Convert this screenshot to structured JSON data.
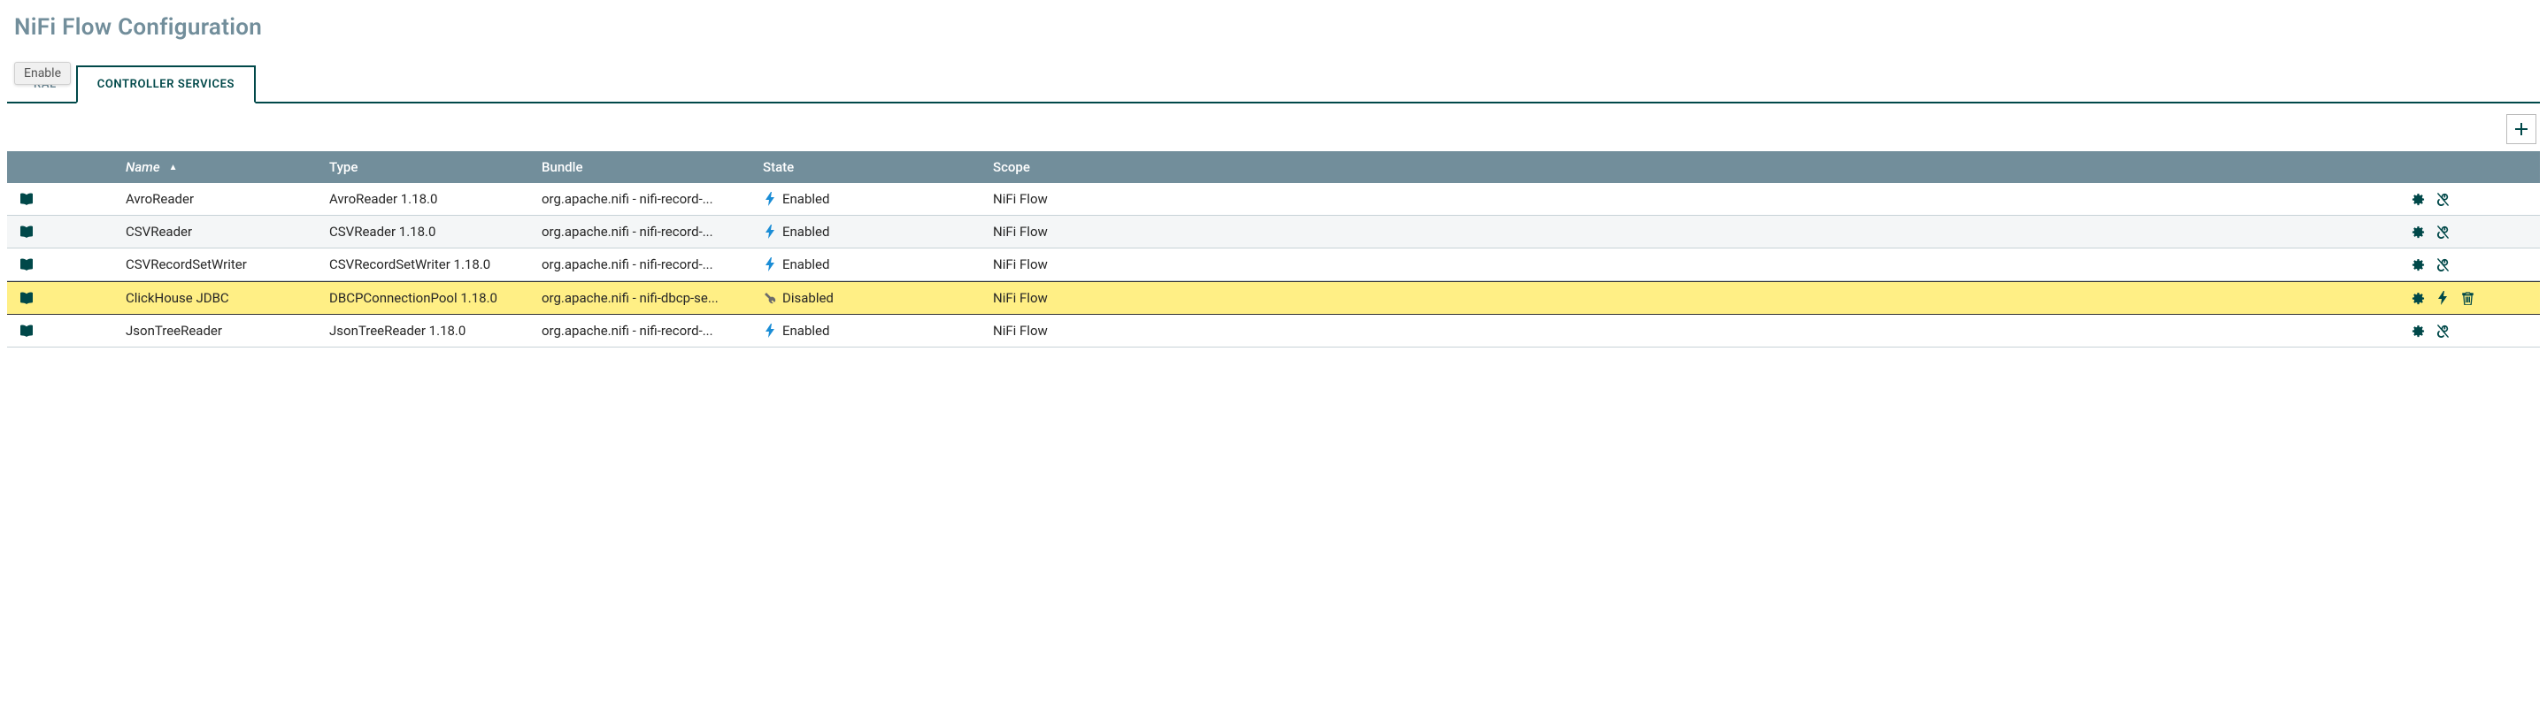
{
  "title": "NiFi Flow Configuration",
  "tooltip": "Enable",
  "tabs": [
    {
      "label": "GENERAL",
      "active": false,
      "visibleFragment": "RAL"
    },
    {
      "label": "CONTROLLER SERVICES",
      "active": true
    }
  ],
  "colors": {
    "header_bg": "#728e9b",
    "header_text": "#ffffff",
    "accent": "#004849",
    "highlight_bg": "#ffef85",
    "alt_row_bg": "#f4f6f7",
    "text": "#262626",
    "enabled_icon": "#1b8dd6",
    "disabled_icon": "#6b6b6b"
  },
  "columns": {
    "name": "Name",
    "type": "Type",
    "bundle": "Bundle",
    "state": "State",
    "scope": "Scope"
  },
  "sort": {
    "column": "name",
    "dir": "asc",
    "indicator": "▲"
  },
  "rows": [
    {
      "name": "AvroReader",
      "type": "AvroReader 1.18.0",
      "bundle": "org.apache.nifi - nifi-record-...",
      "state": "Enabled",
      "stateKind": "enabled",
      "scope": "NiFi Flow",
      "actions": [
        "settings",
        "disable"
      ],
      "alt": false,
      "highlight": false
    },
    {
      "name": "CSVReader",
      "type": "CSVReader 1.18.0",
      "bundle": "org.apache.nifi - nifi-record-...",
      "state": "Enabled",
      "stateKind": "enabled",
      "scope": "NiFi Flow",
      "actions": [
        "settings",
        "disable"
      ],
      "alt": true,
      "highlight": false
    },
    {
      "name": "CSVRecordSetWriter",
      "type": "CSVRecordSetWriter 1.18.0",
      "bundle": "org.apache.nifi - nifi-record-...",
      "state": "Enabled",
      "stateKind": "enabled",
      "scope": "NiFi Flow",
      "actions": [
        "settings",
        "disable"
      ],
      "alt": false,
      "highlight": false
    },
    {
      "name": "ClickHouse JDBC",
      "type": "DBCPConnectionPool 1.18.0",
      "bundle": "org.apache.nifi - nifi-dbcp-se...",
      "state": "Disabled",
      "stateKind": "disabled",
      "scope": "NiFi Flow",
      "actions": [
        "settings",
        "enable",
        "delete"
      ],
      "alt": true,
      "highlight": true
    },
    {
      "name": "JsonTreeReader",
      "type": "JsonTreeReader 1.18.0",
      "bundle": "org.apache.nifi - nifi-record-...",
      "state": "Enabled",
      "stateKind": "enabled",
      "scope": "NiFi Flow",
      "actions": [
        "settings",
        "disable"
      ],
      "alt": false,
      "highlight": false
    }
  ]
}
